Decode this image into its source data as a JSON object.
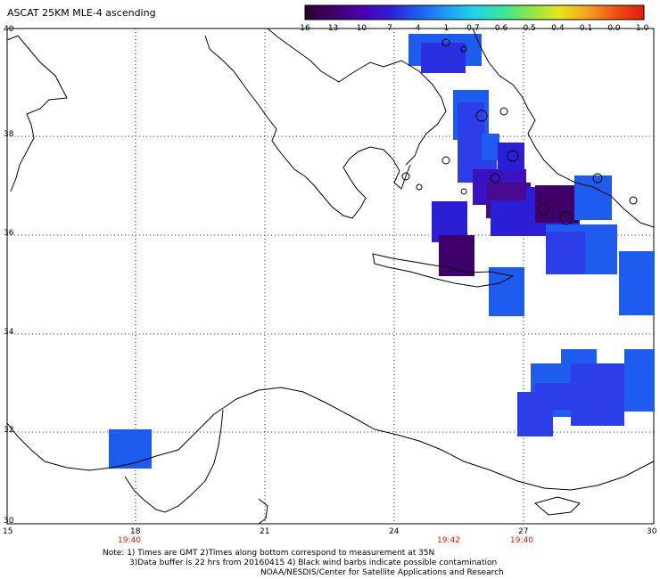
{
  "title": "ASCAT 25KM MLE-4 ascending",
  "colorbar": {
    "labels": [
      "-16",
      "-13",
      "-10",
      "-7",
      "-4",
      "-1",
      "-0.7",
      "-0.6",
      "-0.5",
      "-0.4",
      "-0.1",
      "0.0",
      "1.0"
    ],
    "colors": [
      "#2a0033",
      "#40006a",
      "#4a00b0",
      "#2b1fd6",
      "#1e5cf0",
      "#1c9cf3",
      "#1ed6e6",
      "#39e69a",
      "#8ee644",
      "#e6e61c",
      "#f6a21e",
      "#ef4f16",
      "#e11b0e"
    ]
  },
  "map": {
    "lat_labels": [
      "40",
      "38",
      "36",
      "34",
      "32",
      "30"
    ],
    "lon_labels": [
      "15",
      "18",
      "21",
      "24",
      "27",
      "30"
    ],
    "time_labels": [
      "19:40",
      "19:42",
      "19:40"
    ]
  },
  "notes": {
    "line1": "Note: 1) Times are GMT 2)Times along bottom correspond to measurement at 35N",
    "line2": "3)Data buffer is 22 hrs from 20160415 4) Black wind barbs indicate possible contamination",
    "line3": "NOAA/NESDIS/Center for Satellite Applications and Research"
  }
}
